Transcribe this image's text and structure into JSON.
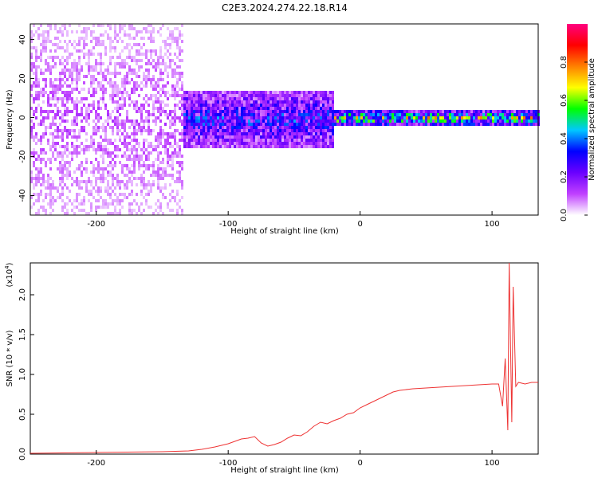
{
  "figure_title": "C2E3.2024.274.22.18.R14",
  "chart_data": [
    {
      "type": "heatmap",
      "title": "C2E3.2024.274.22.18.R14",
      "xlabel": "Height of straight line (km)",
      "ylabel": "Frequency (Hz)",
      "xlim": [
        -250,
        135
      ],
      "ylim": [
        -50,
        48
      ],
      "xticks": [
        -200,
        -100,
        0,
        100
      ],
      "yticks": [
        -40,
        -20,
        0,
        20,
        40
      ],
      "colorbar": {
        "label": "Normalized spectral amplitude",
        "range": [
          0,
          1
        ],
        "ticks": [
          0.0,
          0.2,
          0.4,
          0.6,
          0.8
        ],
        "colors": [
          "#ffffff",
          "#c040ff",
          "#6a00ff",
          "#0000ff",
          "#00c8ff",
          "#00ff00",
          "#ffff00",
          "#ff8000",
          "#ff0000",
          "#ff0080"
        ]
      },
      "regions": [
        {
          "x_range": [
            -250,
            -135
          ],
          "freq_range": [
            -50,
            48
          ],
          "amplitude": 0.1,
          "description_level": "broadband-noise"
        },
        {
          "x_range": [
            -135,
            -20
          ],
          "freq_range": [
            -15,
            15
          ],
          "amplitude": 0.3
        },
        {
          "x_range": [
            -20,
            135
          ],
          "freq_range": [
            -3,
            4
          ],
          "amplitude": 0.55
        }
      ]
    },
    {
      "type": "line",
      "xlabel": "Height of straight line (km)",
      "ylabel": "SNR (10 * v/v)",
      "exponent_label": "(x10",
      "exponent_power": "4",
      "exponent_close": ")",
      "xlim": [
        -250,
        135
      ],
      "ylim": [
        0,
        2.4
      ],
      "xticks": [
        -200,
        -100,
        0,
        100
      ],
      "yticks": [
        0.0,
        0.5,
        1.0,
        1.5,
        2.0
      ],
      "ytick_labels": [
        "0.0",
        "0.5",
        "1.0",
        "1.5",
        "2.0"
      ],
      "color": "#ee3333",
      "series": [
        {
          "x": [
            -250,
            -200,
            -150,
            -130,
            -120,
            -110,
            -100,
            -95,
            -90,
            -85,
            -80,
            -75,
            -70,
            -65,
            -60,
            -55,
            -50,
            -45,
            -40,
            -35,
            -30,
            -25,
            -20,
            -15,
            -10,
            -5,
            0,
            5,
            10,
            15,
            20,
            25,
            30,
            40,
            50,
            60,
            70,
            80,
            90,
            100,
            105,
            108,
            110,
            112,
            113,
            115,
            116,
            118,
            120,
            125,
            130,
            135
          ],
          "y": [
            0.01,
            0.02,
            0.03,
            0.04,
            0.06,
            0.09,
            0.13,
            0.16,
            0.19,
            0.2,
            0.22,
            0.14,
            0.1,
            0.12,
            0.15,
            0.2,
            0.24,
            0.23,
            0.28,
            0.35,
            0.4,
            0.38,
            0.42,
            0.45,
            0.5,
            0.52,
            0.58,
            0.62,
            0.66,
            0.7,
            0.74,
            0.78,
            0.8,
            0.82,
            0.83,
            0.84,
            0.85,
            0.86,
            0.87,
            0.88,
            0.88,
            0.6,
            1.2,
            0.3,
            2.4,
            0.4,
            2.1,
            0.85,
            0.9,
            0.88,
            0.9,
            0.9
          ]
        }
      ]
    }
  ]
}
